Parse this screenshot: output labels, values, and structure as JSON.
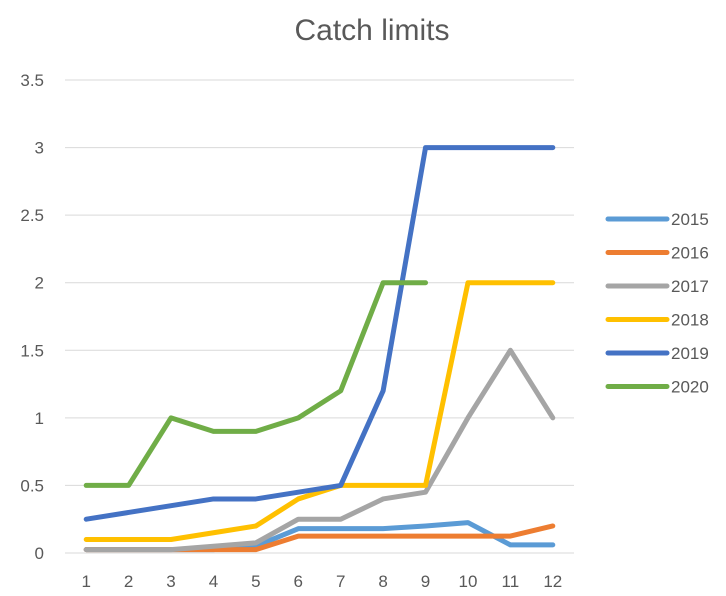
{
  "chart_data": {
    "type": "line",
    "title": "Catch limits",
    "xlabel": "",
    "ylabel": "",
    "x": [
      1,
      2,
      3,
      4,
      5,
      6,
      7,
      8,
      9,
      10,
      11,
      12
    ],
    "ylim": [
      0,
      3.5
    ],
    "yticks": [
      "0",
      "0.5",
      "1",
      "1.5",
      "2",
      "2.5",
      "3",
      "3.5"
    ],
    "grid": true,
    "legend_position": "right",
    "series": [
      {
        "name": "2015",
        "color": "#5b9bd5",
        "values": [
          0.025,
          0.025,
          0.025,
          0.025,
          0.05,
          0.18,
          0.18,
          0.18,
          0.2,
          0.225,
          0.06,
          0.06
        ]
      },
      {
        "name": "2016",
        "color": "#ed7d31",
        "values": [
          0.025,
          0.025,
          0.025,
          0.025,
          0.025,
          0.125,
          0.125,
          0.125,
          0.125,
          0.125,
          0.125,
          0.2
        ]
      },
      {
        "name": "2017",
        "color": "#a5a5a5",
        "values": [
          0.025,
          0.025,
          0.025,
          0.05,
          0.075,
          0.25,
          0.25,
          0.4,
          0.45,
          1.0,
          1.5,
          1.0
        ]
      },
      {
        "name": "2018",
        "color": "#ffc000",
        "values": [
          0.1,
          0.1,
          0.1,
          0.15,
          0.2,
          0.4,
          0.5,
          0.5,
          0.5,
          2.0,
          2.0,
          2.0
        ]
      },
      {
        "name": "2019",
        "color": "#4472c4",
        "values": [
          0.25,
          0.3,
          0.35,
          0.4,
          0.4,
          0.45,
          0.5,
          1.2,
          3.0,
          3.0,
          3.0,
          3.0
        ]
      },
      {
        "name": "2020",
        "color": "#70ad47",
        "values": [
          0.5,
          0.5,
          1.0,
          0.9,
          0.9,
          1.0,
          1.2,
          2.0,
          2.0,
          null,
          null,
          null
        ]
      }
    ]
  }
}
